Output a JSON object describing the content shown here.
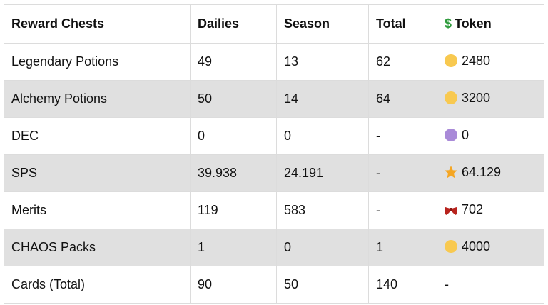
{
  "table": {
    "token_symbol": "$",
    "header": [
      "Reward Chests",
      "Dailies",
      "Season",
      "Total",
      "Token"
    ],
    "rows": [
      [
        "Legendary Potions",
        "49",
        "13",
        "62",
        "2480"
      ],
      [
        "Alchemy Potions",
        "50",
        "14",
        "64",
        "3200"
      ],
      [
        "DEC",
        "0",
        "0",
        "-",
        "0"
      ],
      [
        "SPS",
        "39.938",
        "24.191",
        "-",
        "64.129"
      ],
      [
        "Merits",
        "119",
        "583",
        "-",
        "702"
      ],
      [
        "CHAOS Packs",
        "1",
        "0",
        "1",
        "4000"
      ],
      [
        "Cards (Total)",
        "90",
        "50",
        "140",
        "-"
      ]
    ]
  }
}
